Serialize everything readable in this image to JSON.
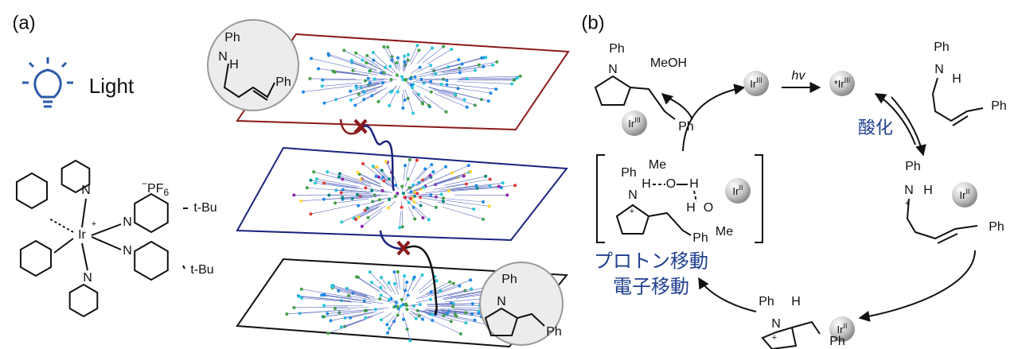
{
  "panel_a": {
    "label": "(a)",
    "light": "Light",
    "complex": {
      "atoms": [
        "N",
        "Ir",
        "+",
        "N",
        "N",
        "N"
      ],
      "counterion_charge": "−",
      "counterion": "PF",
      "counterion_sub": "6",
      "substituents": [
        "t-Bu",
        "t-Bu"
      ]
    },
    "top_inset": [
      "Ph",
      "N",
      "H",
      "Ph"
    ],
    "bottom_inset": [
      "Ph",
      "N",
      "Ph"
    ]
  },
  "panel_b": {
    "label": "(b)",
    "product": {
      "atoms": [
        "Ph",
        "N",
        "Ph"
      ],
      "solvent": "MeOH"
    },
    "catalysts": [
      {
        "base": "Ir",
        "ox": "III"
      },
      {
        "base": "Ir",
        "ox": "III"
      },
      {
        "prefix": "*",
        "base": "Ir",
        "ox": "III"
      },
      {
        "base": "Ir",
        "ox": "II"
      },
      {
        "base": "Ir",
        "ox": "II"
      },
      {
        "base": "Ir",
        "ox": "II"
      }
    ],
    "photon": "hv",
    "oxidation": "酸化",
    "substrate": [
      "Ph",
      "N",
      "H",
      "Ph"
    ],
    "intermediate": [
      "Ph",
      "N",
      "+",
      "H",
      "Me",
      "O",
      "H",
      "H",
      "O",
      "Me",
      "Ph"
    ],
    "steps": [
      "プロトン移動",
      "電子移動"
    ],
    "radical_cation": [
      "Ph",
      "N",
      "+",
      "H",
      "Ph"
    ],
    "radical": [
      "Ph",
      "N",
      "+",
      "H",
      "Ph"
    ]
  }
}
